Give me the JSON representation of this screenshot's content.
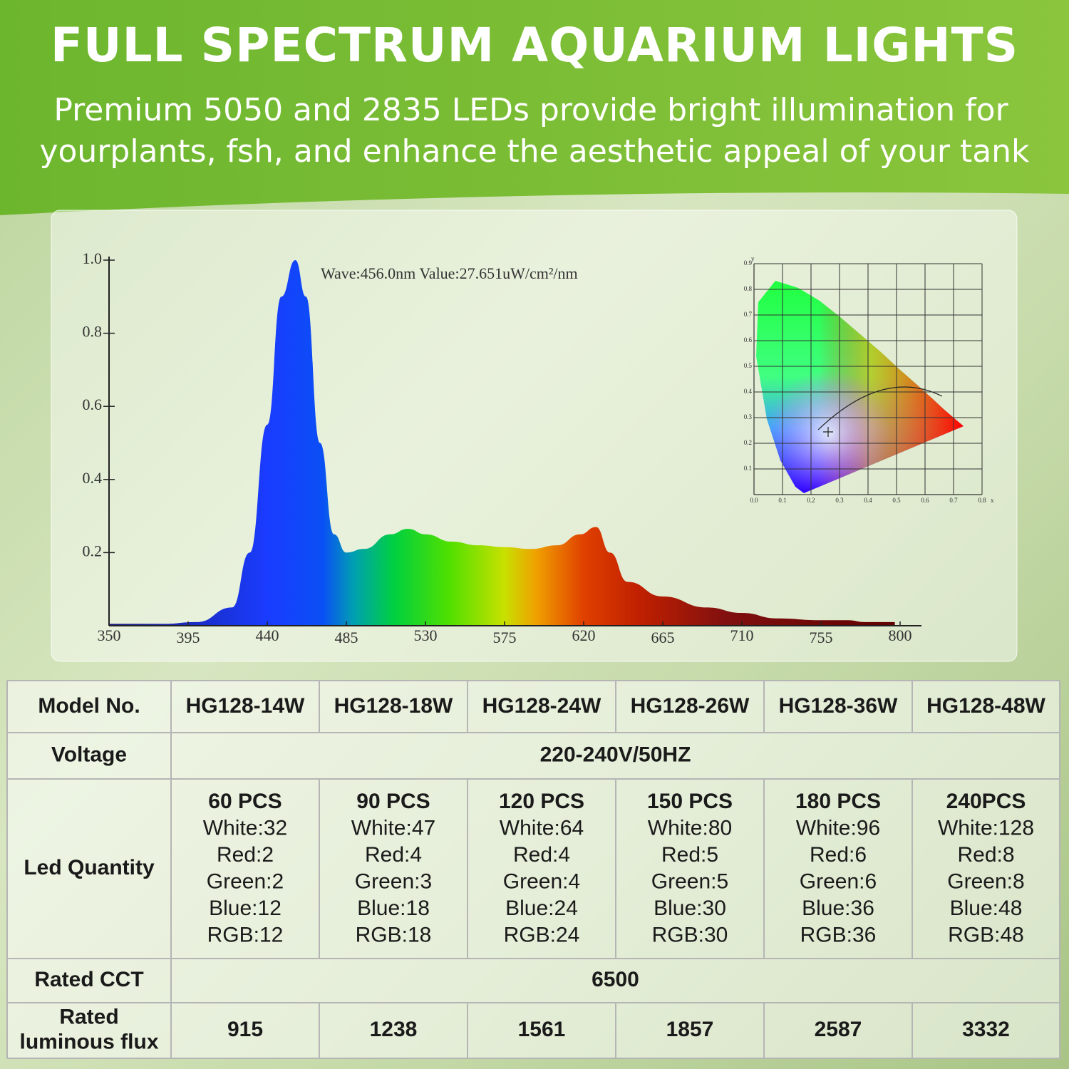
{
  "header": {
    "title": "FULL SPECTRUM AQUARIUM LIGHTS",
    "subtitle": [
      "Premium 5050 and 2835 LEDs provide bright illumination for",
      "yourplants, fsh, and enhance the aesthetic appeal of your tank"
    ]
  },
  "chart_data": [
    {
      "type": "area",
      "annotation": "Wave:456.0nm   Value:27.651uW/cm²/nm",
      "x": [
        350,
        380,
        400,
        420,
        430,
        440,
        448,
        456,
        462,
        470,
        478,
        485,
        495,
        510,
        520,
        530,
        545,
        560,
        575,
        590,
        605,
        618,
        627,
        635,
        645,
        665,
        690,
        710,
        730,
        755,
        770,
        780,
        797
      ],
      "values": [
        0.005,
        0.005,
        0.01,
        0.05,
        0.2,
        0.55,
        0.9,
        1.0,
        0.9,
        0.5,
        0.25,
        0.2,
        0.21,
        0.25,
        0.265,
        0.25,
        0.23,
        0.22,
        0.215,
        0.21,
        0.22,
        0.25,
        0.27,
        0.2,
        0.12,
        0.08,
        0.05,
        0.035,
        0.02,
        0.015,
        0.015,
        0.01,
        0.01
      ],
      "xlim": [
        350,
        800
      ],
      "ylim": [
        0,
        1.0
      ],
      "xticks": [
        350,
        395,
        440,
        485,
        530,
        575,
        620,
        665,
        710,
        755,
        800
      ],
      "yticks": [
        0.2,
        0.4,
        0.6,
        0.8,
        {
          "value": 1,
          "label": "1.0"
        }
      ]
    },
    {
      "type": "cie",
      "x_label": "x",
      "y_label": "y",
      "xlim": [
        0,
        0.8
      ],
      "ylim": [
        0,
        0.9
      ],
      "xticks": [
        {
          "value": 0,
          "label": "0.0"
        },
        0.1,
        0.2,
        0.3,
        0.4,
        0.5,
        0.6,
        0.7,
        0.8
      ],
      "yticks": [
        0.1,
        0.2,
        0.3,
        0.4,
        0.5,
        0.6,
        0.7,
        0.8,
        0.9
      ],
      "grid": true
    }
  ],
  "table": {
    "columns": [
      "Model No.",
      "HG128-14W",
      "HG128-18W",
      "HG128-24W",
      "HG128-26W",
      "HG128-36W",
      "HG128-48W"
    ],
    "rows": [
      {
        "label": [
          "Voltage"
        ],
        "cells": [
          "220-240V/50HZ"
        ]
      },
      {
        "label": [
          "Led Quantity"
        ],
        "cells": [
          [
            "60 PCS",
            "White:32",
            "Red:2",
            "Green:2",
            "Blue:12",
            "RGB:12"
          ],
          [
            "90 PCS",
            "White:47",
            "Red:4",
            "Green:3",
            "Blue:18",
            "RGB:18"
          ],
          [
            "120 PCS",
            "White:64",
            "Red:4",
            "Green:4",
            "Blue:24",
            "RGB:24"
          ],
          [
            "150 PCS",
            "White:80",
            "Red:5",
            "Green:5",
            "Blue:30",
            "RGB:30"
          ],
          [
            "180 PCS",
            "White:96",
            "Red:6",
            "Green:6",
            "Blue:36",
            "RGB:36"
          ],
          [
            "240PCS",
            "White:128",
            "Red:8",
            "Green:8",
            "Blue:48",
            "RGB:48"
          ]
        ]
      },
      {
        "label": [
          "Rated CCT"
        ],
        "cells": [
          "6500"
        ]
      },
      {
        "label": [
          "Rated",
          "luminous flux"
        ],
        "cells": [
          "915",
          "1238",
          "1561",
          "1857",
          "2587",
          "3332"
        ]
      }
    ]
  }
}
